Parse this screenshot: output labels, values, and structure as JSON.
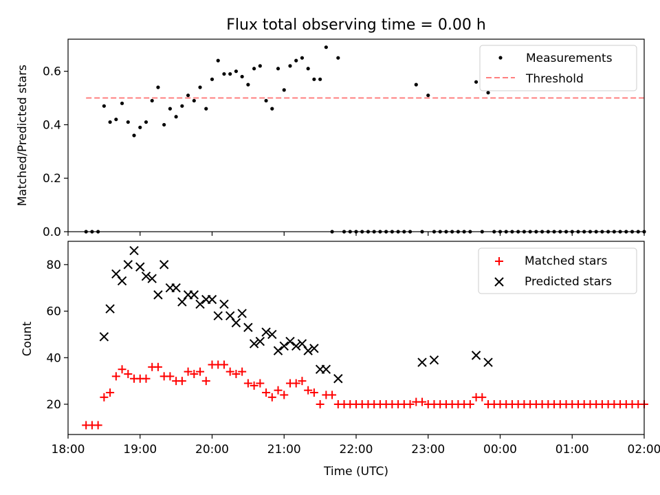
{
  "chart_data": [
    {
      "type": "scatter",
      "title": "Flux total observing time = 0.00 h",
      "xlabel": "",
      "ylabel": "Matched/Predicted stars",
      "xlim": [
        "18:00",
        "02:00"
      ],
      "ylim": [
        0,
        0.72
      ],
      "yticks": [
        0.0,
        0.2,
        0.4,
        0.6
      ],
      "yticklabels": [
        "0.0",
        "0.2",
        "0.4",
        "0.6"
      ],
      "grid": false,
      "legend_position": "top-right",
      "series": [
        {
          "name": "Measurements",
          "kind": "points",
          "color": "#000000",
          "x": [
            "18:15",
            "18:20",
            "18:25",
            "18:30",
            "18:35",
            "18:40",
            "18:45",
            "18:50",
            "18:55",
            "19:00",
            "19:05",
            "19:10",
            "19:15",
            "19:20",
            "19:25",
            "19:30",
            "19:35",
            "19:40",
            "19:45",
            "19:50",
            "19:55",
            "20:00",
            "20:05",
            "20:10",
            "20:15",
            "20:20",
            "20:25",
            "20:30",
            "20:35",
            "20:40",
            "20:45",
            "20:50",
            "20:55",
            "21:00",
            "21:05",
            "21:10",
            "21:15",
            "21:20",
            "21:25",
            "21:30",
            "21:35",
            "21:40",
            "21:45",
            "21:50",
            "21:55",
            "22:00",
            "22:05",
            "22:10",
            "22:15",
            "22:20",
            "22:25",
            "22:30",
            "22:35",
            "22:40",
            "22:45",
            "22:50",
            "22:55",
            "23:00",
            "23:05",
            "23:10",
            "23:15",
            "23:20",
            "23:25",
            "23:30",
            "23:35",
            "23:40",
            "23:45",
            "23:50",
            "23:55",
            "00:00",
            "00:05",
            "00:10",
            "00:15",
            "00:20",
            "00:25",
            "00:30",
            "00:35",
            "00:40",
            "00:45",
            "00:50",
            "00:55",
            "01:00",
            "01:05",
            "01:10",
            "01:15",
            "01:20",
            "01:25",
            "01:30",
            "01:35",
            "01:40",
            "01:45",
            "01:50",
            "01:55",
            "02:00"
          ],
          "y": [
            0,
            0,
            0,
            0.47,
            0.41,
            0.42,
            0.48,
            0.41,
            0.36,
            0.39,
            0.41,
            0.49,
            0.54,
            0.4,
            0.46,
            0.43,
            0.47,
            0.51,
            0.49,
            0.54,
            0.46,
            0.57,
            0.64,
            0.59,
            0.59,
            0.6,
            0.58,
            0.55,
            0.61,
            0.62,
            0.49,
            0.46,
            0.61,
            0.53,
            0.62,
            0.64,
            0.65,
            0.61,
            0.57,
            0.57,
            0.69,
            0,
            0.65,
            0,
            0,
            0,
            0,
            0,
            0,
            0,
            0,
            0,
            0,
            0,
            0,
            0.55,
            0,
            0.51,
            0,
            0,
            0,
            0,
            0,
            0,
            0,
            0.56,
            0,
            0.52,
            0,
            0,
            0,
            0,
            0,
            0,
            0,
            0,
            0,
            0,
            0,
            0,
            0,
            0,
            0,
            0,
            0,
            0,
            0,
            0,
            0,
            0,
            0,
            0,
            0,
            0
          ]
        },
        {
          "name": "Threshold",
          "kind": "dashed-line",
          "color": "#ff7f7f",
          "x": [
            "18:15",
            "02:00"
          ],
          "y": [
            0.5,
            0.5
          ]
        }
      ]
    },
    {
      "type": "scatter",
      "title": "",
      "xlabel": "Time (UTC)",
      "ylabel": "Count",
      "xlim": [
        "18:00",
        "02:00"
      ],
      "ylim": [
        7,
        90
      ],
      "yticks": [
        20,
        40,
        60,
        80
      ],
      "yticklabels": [
        "20",
        "40",
        "60",
        "80"
      ],
      "xticks": [
        "18:00",
        "19:00",
        "20:00",
        "21:00",
        "22:00",
        "23:00",
        "00:00",
        "01:00",
        "02:00"
      ],
      "grid": false,
      "legend_position": "top-right",
      "series": [
        {
          "name": "Matched stars",
          "kind": "plus",
          "color": "#ff0000",
          "x": [
            "18:15",
            "18:20",
            "18:25",
            "18:30",
            "18:35",
            "18:40",
            "18:45",
            "18:50",
            "18:55",
            "19:00",
            "19:05",
            "19:10",
            "19:15",
            "19:20",
            "19:25",
            "19:30",
            "19:35",
            "19:40",
            "19:45",
            "19:50",
            "19:55",
            "20:00",
            "20:05",
            "20:10",
            "20:15",
            "20:20",
            "20:25",
            "20:30",
            "20:35",
            "20:40",
            "20:45",
            "20:50",
            "20:55",
            "21:00",
            "21:05",
            "21:10",
            "21:15",
            "21:20",
            "21:25",
            "21:30",
            "21:35",
            "21:40",
            "21:45",
            "21:50",
            "21:55",
            "22:00",
            "22:05",
            "22:10",
            "22:15",
            "22:20",
            "22:25",
            "22:30",
            "22:35",
            "22:40",
            "22:45",
            "22:50",
            "22:55",
            "23:00",
            "23:05",
            "23:10",
            "23:15",
            "23:20",
            "23:25",
            "23:30",
            "23:35",
            "23:40",
            "23:45",
            "23:50",
            "23:55",
            "00:00",
            "00:05",
            "00:10",
            "00:15",
            "00:20",
            "00:25",
            "00:30",
            "00:35",
            "00:40",
            "00:45",
            "00:50",
            "00:55",
            "01:00",
            "01:05",
            "01:10",
            "01:15",
            "01:20",
            "01:25",
            "01:30",
            "01:35",
            "01:40",
            "01:45",
            "01:50",
            "01:55",
            "02:00"
          ],
          "y": [
            11,
            11,
            11,
            23,
            25,
            32,
            35,
            33,
            31,
            31,
            31,
            36,
            36,
            32,
            32,
            30,
            30,
            34,
            33,
            34,
            30,
            37,
            37,
            37,
            34,
            33,
            34,
            29,
            28,
            29,
            25,
            23,
            26,
            24,
            29,
            29,
            30,
            26,
            25,
            20,
            24,
            24,
            20,
            20,
            20,
            20,
            20,
            20,
            20,
            20,
            20,
            20,
            20,
            20,
            20,
            21,
            21,
            20,
            20,
            20,
            20,
            20,
            20,
            20,
            20,
            23,
            23,
            20,
            20,
            20,
            20,
            20,
            20,
            20,
            20,
            20,
            20,
            20,
            20,
            20,
            20,
            20,
            20,
            20,
            20,
            20,
            20,
            20,
            20,
            20,
            20,
            20,
            20,
            20
          ]
        },
        {
          "name": "Predicted stars",
          "kind": "x",
          "color": "#000000",
          "x": [
            "18:30",
            "18:35",
            "18:40",
            "18:45",
            "18:50",
            "18:55",
            "19:00",
            "19:05",
            "19:10",
            "19:15",
            "19:20",
            "19:25",
            "19:30",
            "19:35",
            "19:40",
            "19:45",
            "19:50",
            "19:55",
            "20:00",
            "20:05",
            "20:10",
            "20:15",
            "20:20",
            "20:25",
            "20:30",
            "20:35",
            "20:40",
            "20:45",
            "20:50",
            "20:55",
            "21:00",
            "21:05",
            "21:10",
            "21:15",
            "21:20",
            "21:25",
            "21:30",
            "21:35",
            "21:45",
            "22:55",
            "23:05",
            "23:40",
            "23:50"
          ],
          "y": [
            49,
            61,
            76,
            73,
            80,
            86,
            79,
            75,
            74,
            67,
            80,
            70,
            70,
            64,
            67,
            67,
            63,
            65,
            65,
            58,
            63,
            58,
            55,
            59,
            53,
            46,
            47,
            51,
            50,
            43,
            45,
            47,
            45,
            46,
            43,
            44,
            35,
            35,
            31,
            38,
            39,
            41,
            38
          ]
        }
      ]
    }
  ]
}
